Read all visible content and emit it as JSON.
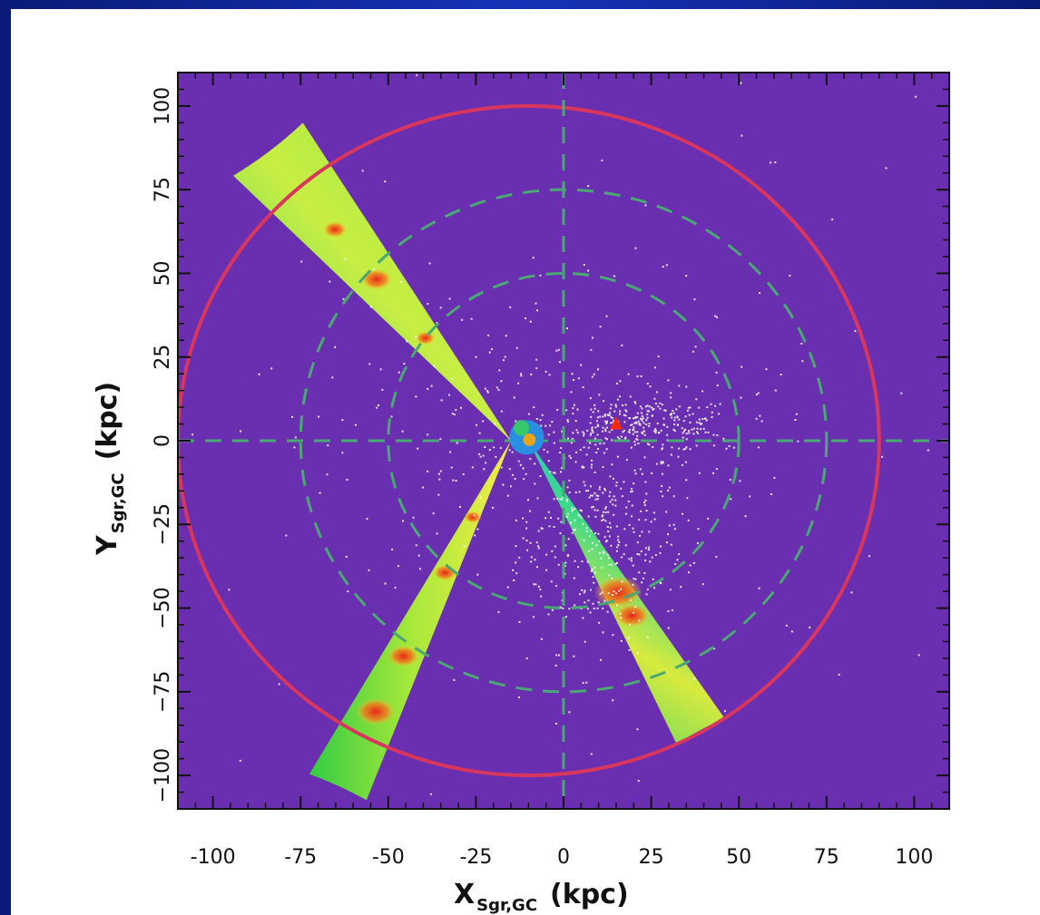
{
  "colors": {
    "slide_background": "#0b1f86",
    "plot_background": "#6a2fb0",
    "outer_circle": "#d9365e",
    "dashed_grid": "#4aa874",
    "stars": "#ffffff",
    "marker": "#ff2a00"
  },
  "chart_data": {
    "type": "scatter",
    "title": "",
    "xlabel": {
      "main": "X",
      "sub": "Sgr,GC",
      "unit": "(kpc)"
    },
    "ylabel": {
      "main": "Y",
      "sub": "Sgr,GC",
      "unit": "(kpc)"
    },
    "xlim": [
      -110,
      110
    ],
    "ylim": [
      110,
      -110
    ],
    "y_axis_inverted": true,
    "xticks": [
      -100,
      -75,
      -50,
      -25,
      0,
      25,
      50,
      75,
      100
    ],
    "xtick_labels": [
      "-100",
      "-75",
      "-50",
      "-25",
      "0",
      "25",
      "50",
      "75",
      "100"
    ],
    "yticks": [
      -100,
      -75,
      -50,
      -25,
      0,
      25,
      50,
      75,
      100
    ],
    "ytick_labels": [
      "−100",
      "−75",
      "−50",
      "−25",
      "0",
      "25",
      "50",
      "75",
      "100"
    ],
    "dashed_circles_radius": [
      50,
      75
    ],
    "solid_circle_radius": 100,
    "solid_circle_center": [
      -10,
      0
    ],
    "crosshair_lines": {
      "x": 0,
      "y": 0
    },
    "wedges": [
      {
        "apex": [
          -15,
          0
        ],
        "angle_from_deg": 111,
        "angle_to_deg": 120,
        "r_max": 115
      },
      {
        "apex": [
          -15,
          0
        ],
        "angle_from_deg": -135,
        "angle_to_deg": -122,
        "r_max": 112
      },
      {
        "apex": [
          -10,
          0
        ],
        "angle_from_deg": 56,
        "angle_to_deg": 65,
        "r_max": 100
      }
    ],
    "central_box": {
      "x": [
        -18,
        -3
      ],
      "y": [
        -6,
        8
      ]
    },
    "marker": {
      "shape": "triangle",
      "x": 15,
      "y": 5
    },
    "star_clusters": [
      {
        "cx": 10,
        "cy": -30,
        "sx": 12,
        "sy": 16,
        "n": 320
      },
      {
        "cx": 22,
        "cy": 5,
        "sx": 14,
        "sy": 4,
        "n": 260
      },
      {
        "cx": -5,
        "cy": -2,
        "sx": 30,
        "sy": 22,
        "n": 260
      },
      {
        "cx": 0,
        "cy": 0,
        "sx": 60,
        "sy": 50,
        "n": 160
      }
    ]
  }
}
